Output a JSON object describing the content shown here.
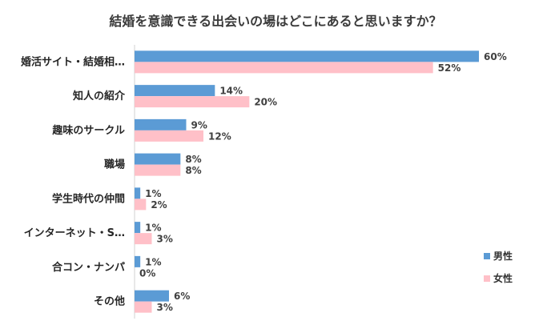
{
  "chart_data": {
    "type": "bar",
    "orientation": "horizontal",
    "title": "結婚を意識できる出会いの場はどこにあると思いますか？",
    "categories": [
      "婚活サイト・結婚相…",
      "知人の紹介",
      "趣味のサークル",
      "職場",
      "学生時代の仲間",
      "インターネット・S…",
      "合コン・ナンパ",
      "その他"
    ],
    "series": [
      {
        "name": "男性",
        "color": "#5b9bd5",
        "values": [
          60,
          14,
          9,
          8,
          1,
          1,
          1,
          6
        ]
      },
      {
        "name": "女性",
        "color": "#ffc0c8",
        "values": [
          52,
          20,
          12,
          8,
          2,
          3,
          0,
          3
        ]
      }
    ],
    "value_suffix": "%",
    "xlim": [
      0,
      60
    ],
    "grid": false,
    "legend_position": "right"
  }
}
